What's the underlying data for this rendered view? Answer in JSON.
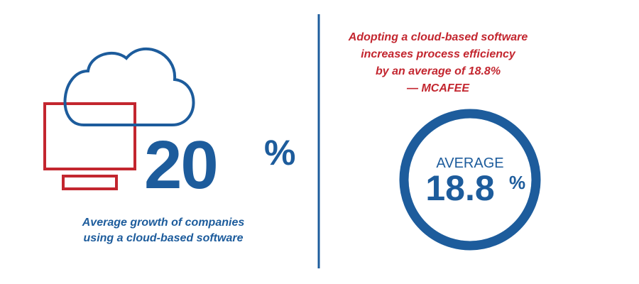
{
  "left": {
    "stat": "20",
    "unit": "%",
    "caption": [
      "Average growth of companies",
      "using a cloud-based software"
    ]
  },
  "right": {
    "quote": [
      "Adopting a cloud-based software",
      "increases process efficiency",
      "by an average of 18.8%"
    ],
    "source": "— MCAFEE",
    "gauge": {
      "label": "AVERAGE",
      "value": 18.8,
      "unit": "%"
    }
  }
}
